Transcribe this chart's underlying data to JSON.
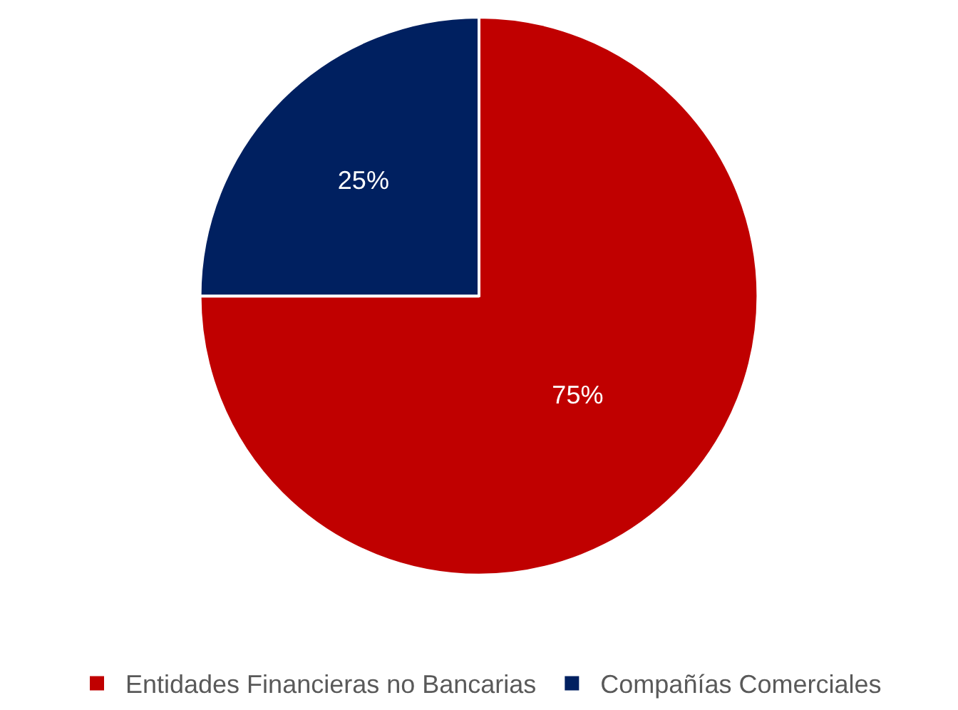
{
  "chart_data": {
    "type": "pie",
    "categories": [
      "Entidades Financieras no Bancarias",
      "Compañías Comerciales"
    ],
    "values": [
      75,
      25
    ],
    "colors": [
      "#c00000",
      "#002060"
    ],
    "value_labels": [
      "75%",
      "25%"
    ],
    "legend": "bottom"
  }
}
